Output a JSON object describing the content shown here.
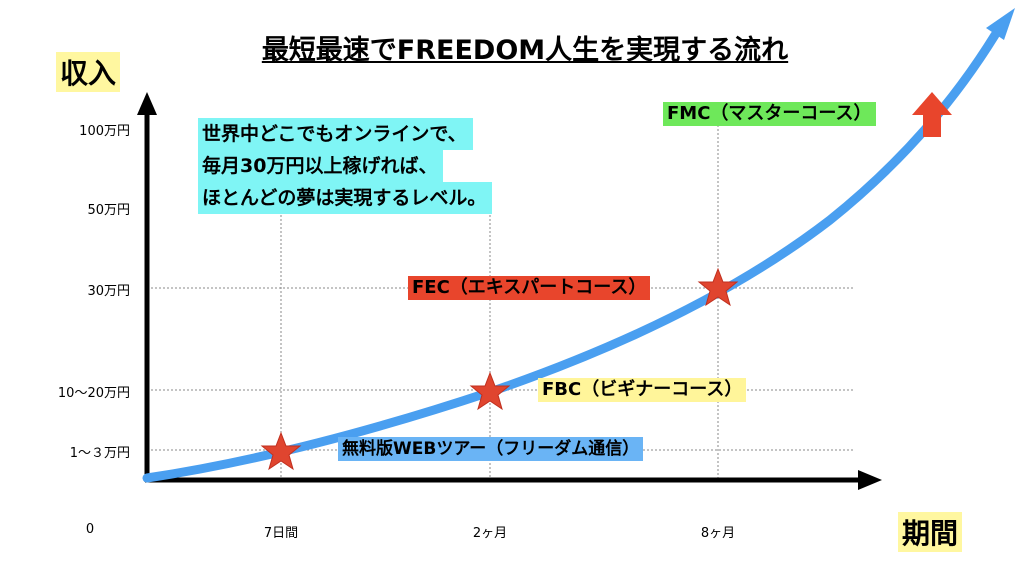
{
  "title": "最短最速でFREEDOM人生を実現する流れ",
  "y_axis_label": "収入",
  "x_axis_label": "期間",
  "y_labels": [
    "100万円",
    "50万円",
    "30万円",
    "10〜20万円",
    "1〜３万円"
  ],
  "x_labels": [
    "0",
    "7日間",
    "2ヶ月",
    "8ヶ月"
  ],
  "note": [
    "世界中どこでもオンラインで、",
    "毎月30万円以上稼げれば、",
    "ほとんどの夢は実現するレベル。"
  ],
  "stages": [
    "FMC（マスターコース）",
    "FEC（エキスパートコース）",
    "FBC（ビギナーコース）",
    "無料版WEBツアー（フリーダム通信）"
  ]
}
